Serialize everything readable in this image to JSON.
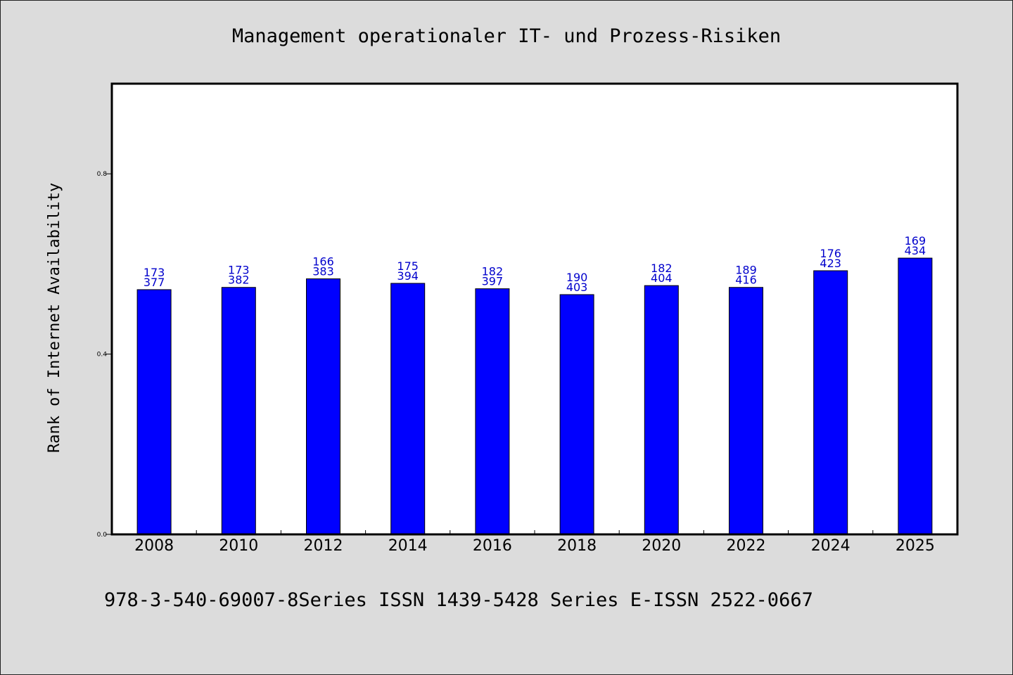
{
  "chart_data": {
    "type": "bar",
    "title": "Management operationaler IT- und Prozess-Risiken",
    "ylabel": "Rank of Internet Availability",
    "xlabel": "",
    "footer": "978-3-540-69007-8Series ISSN 1439-5428 Series E-ISSN 2522-0667",
    "categories": [
      "2008",
      "2010",
      "2012",
      "2014",
      "2016",
      "2018",
      "2020",
      "2022",
      "2024",
      "2025"
    ],
    "values": [
      0.543,
      0.548,
      0.567,
      0.557,
      0.545,
      0.532,
      0.552,
      0.548,
      0.585,
      0.613
    ],
    "labels_top": [
      "173",
      "173",
      "166",
      "175",
      "182",
      "190",
      "182",
      "189",
      "176",
      "169"
    ],
    "labels_bottom": [
      "377",
      "382",
      "383",
      "394",
      "397",
      "403",
      "404",
      "416",
      "423",
      "434"
    ],
    "yticks": [
      0.0,
      0.4,
      0.8
    ],
    "ytick_labels": [
      "0.0",
      "0.4",
      "0.8"
    ],
    "ylim": [
      0,
      1.0
    ],
    "grid": false,
    "colors": {
      "bar": "#0000ff",
      "label": "#0000cc",
      "plot_bg": "#ffffff",
      "page_bg": "#dcdcdc"
    }
  }
}
